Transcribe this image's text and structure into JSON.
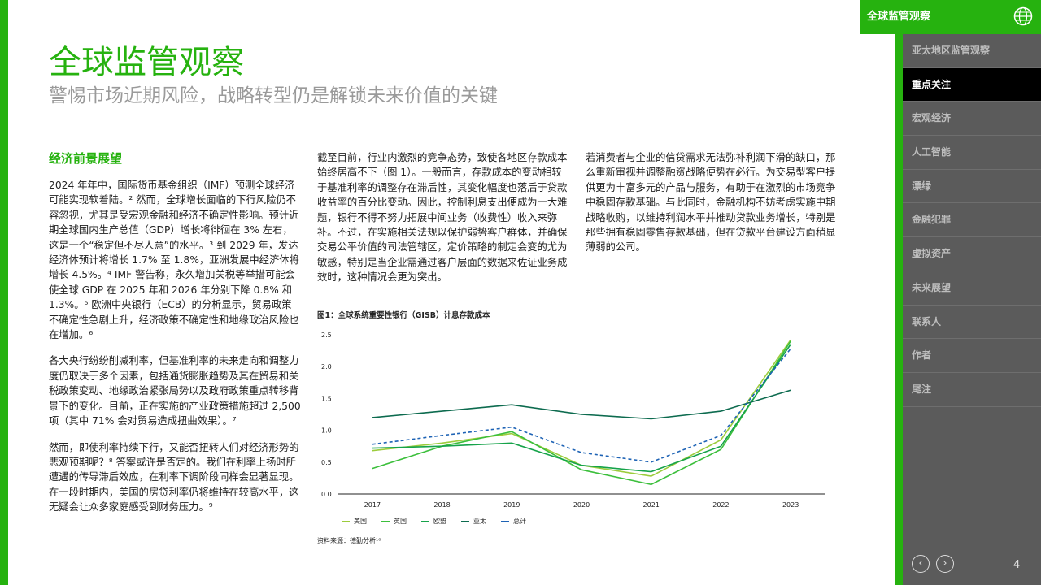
{
  "header": {
    "title": "全球监管观察",
    "subtitle": "警惕市场近期风险，战略转型仍是解锁未来价值的关键"
  },
  "top_tab": {
    "label": "全球监管观察",
    "icon": "globe-icon"
  },
  "sidebar": {
    "items": [
      {
        "label": "亚太地区监管观察",
        "active": false
      },
      {
        "label": "重点关注",
        "active": true
      },
      {
        "label": "宏观经济",
        "active": false
      },
      {
        "label": "人工智能",
        "active": false
      },
      {
        "label": "漂绿",
        "active": false
      },
      {
        "label": "金融犯罪",
        "active": false
      },
      {
        "label": "虚拟资产",
        "active": false
      },
      {
        "label": "未来展望",
        "active": false
      },
      {
        "label": "联系人",
        "active": false
      },
      {
        "label": "作者",
        "active": false
      },
      {
        "label": "尾注",
        "active": false
      }
    ],
    "prev": "‹",
    "next": "›",
    "page": "4"
  },
  "col1": {
    "heading": "经济前景展望",
    "p1": "2024 年年中，国际货币基金组织（IMF）预测全球经济可能实现软着陆。² 然而，全球增长面临的下行风险仍不容忽视，尤其是受宏观金融和经济不确定性影响。预计近期全球国内生产总值（GDP）增长将徘徊在 3% 左右，这是一个“稳定但不尽人意”的水平。³ 到 2029 年，发达经济体预计将增长 1.7% 至 1.8%，亚洲发展中经济体将增长 4.5%。⁴ IMF 警告称，永久增加关税等举措可能会使全球 GDP 在 2025 年和 2026 年分别下降 0.8% 和 1.3%。⁵ 欧洲中央银行（ECB）的分析显示，贸易政策不确定性急剧上升，经济政策不确定性和地缘政治风险也在增加。⁶",
    "p2": "各大央行纷纷削减利率，但基准利率的未来走向和调整力度仍取决于多个因素，包括通货膨胀趋势及其在贸易和关税政策变动、地缘政治紧张局势以及政府政策重点转移背景下的变化。目前，正在实施的产业政策措施超过 2,500 项（其中 71% 会对贸易造成扭曲效果）。⁷",
    "p3": "然而，即使利率持续下行，又能否扭转人们对经济形势的悲观预期呢？⁸ 答案或许是否定的。我们在利率上扬时所遭遇的传导滞后效应，在利率下调阶段同样会显著显现。在一段时期内，美国的房贷利率仍将维持在较高水平，这无疑会让众多家庭感受到财务压力。⁹"
  },
  "col2": {
    "p1": "截至目前，行业内激烈的竞争态势，致使各地区存款成本始终居高不下（图 1）。一般而言，存款成本的变动相较于基准利率的调整存在滞后性，其变化幅度也落后于贷款收益率的百分比变动。因此，控制利息支出便成为一大难题，银行不得不努力拓展中间业务（收费性）收入来弥补。不过，在实施相关法规以保护弱势客户群体，并确保交易公平价值的司法管辖区，定价策略的制定会变的尤为敏感，特别是当企业需通过客户层面的数据来佐证业务成效时，这种情况会更为突出。"
  },
  "col3": {
    "p1": "若消费者与企业的信贷需求无法弥补利润下滑的缺口，那么重新审视并调整融资战略便势在必行。为交易型客户提供更为丰富多元的产品与服务，有助于在激烈的市场竞争中稳固存款基础。与此同时，金融机构不妨考虑实施中期战略收购，以维持利润水平并推动贷款业务增长，特别是那些拥有稳固零售存款基础，但在贷款平台建设方面稍显薄弱的公司。"
  },
  "figure": {
    "title": "图1：全球系统重要性银行（GISB）计息存款成本",
    "source": "资料来源：德勤分析¹⁰"
  },
  "chart_data": {
    "type": "line",
    "x": [
      "2017",
      "2018",
      "2019",
      "2020",
      "2021",
      "2022",
      "2023"
    ],
    "ylim": [
      0,
      2.5
    ],
    "yticks": [
      "0.0",
      "0.5",
      "1.0",
      "1.5",
      "2.0",
      "2.5"
    ],
    "grid": false,
    "legend_position": "bottom",
    "series": [
      {
        "name": "美国",
        "color": "#9ccc3c",
        "dashed": false,
        "values": [
          0.68,
          0.8,
          0.95,
          0.45,
          0.28,
          0.85,
          2.42
        ]
      },
      {
        "name": "英国",
        "color": "#3cbf3c",
        "dashed": false,
        "values": [
          0.4,
          0.75,
          0.98,
          0.38,
          0.15,
          0.7,
          2.4
        ]
      },
      {
        "name": "欧盟",
        "color": "#16a34a",
        "dashed": false,
        "values": [
          0.72,
          0.75,
          0.8,
          0.45,
          0.35,
          0.75,
          2.35
        ]
      },
      {
        "name": "亚太",
        "color": "#0d6b4f",
        "dashed": false,
        "values": [
          1.2,
          1.3,
          1.4,
          1.25,
          1.18,
          1.3,
          1.63
        ]
      },
      {
        "name": "总计",
        "color": "#1e63b5",
        "dashed": true,
        "values": [
          0.78,
          0.92,
          1.05,
          0.65,
          0.5,
          0.92,
          2.28
        ]
      }
    ]
  }
}
